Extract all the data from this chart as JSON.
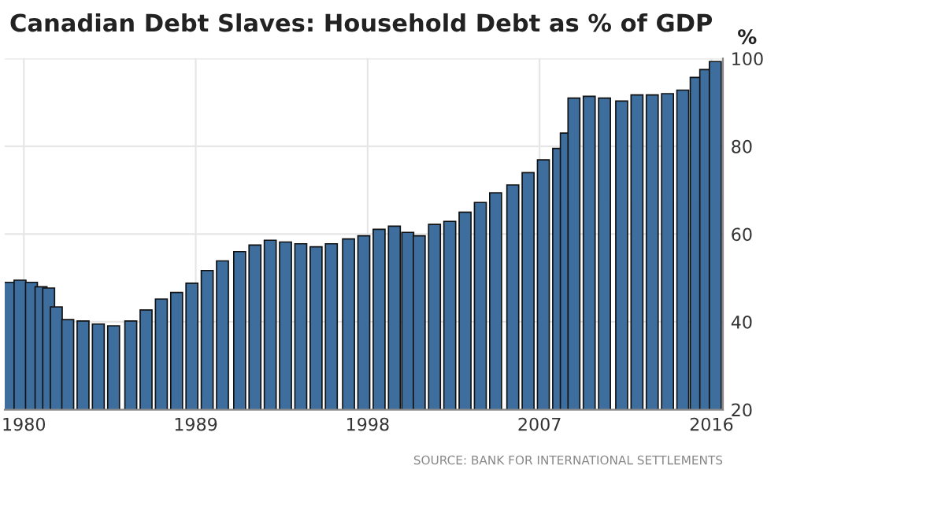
{
  "chart_data": {
    "type": "bar",
    "title": "Canadian Debt Slaves: Household Debt as % of GDP",
    "ylabel": "%",
    "annotations": [
      "SOURCE: BANK FOR INTERNATIONAL SETTLEMENTS"
    ],
    "x": [
      1979.2,
      1979.8,
      1980.4,
      1980.9,
      1981.3,
      1981.7,
      1982.3,
      1983.1,
      1983.9,
      1984.7,
      1985.6,
      1986.4,
      1987.2,
      1988.0,
      1988.8,
      1989.6,
      1990.4,
      1991.3,
      1992.1,
      1992.9,
      1993.7,
      1994.5,
      1995.3,
      1996.1,
      1997.0,
      1997.8,
      1998.6,
      1999.4,
      2000.1,
      2000.7,
      2001.5,
      2002.3,
      2003.1,
      2003.9,
      2004.7,
      2005.6,
      2006.4,
      2007.2,
      2008.0,
      2008.4,
      2008.8,
      2009.6,
      2010.4,
      2011.3,
      2012.1,
      2012.9,
      2013.7,
      2014.5,
      2015.2,
      2015.7,
      2016.2
    ],
    "values": [
      49,
      49.5,
      49,
      48,
      47.7,
      43.4,
      40.5,
      40.2,
      39.5,
      39.1,
      40.2,
      42.7,
      45.2,
      46.7,
      48.8,
      51.7,
      53.9,
      56,
      57.5,
      58.6,
      58.2,
      57.8,
      57.1,
      57.8,
      58.9,
      59.6,
      61.1,
      61.8,
      60.4,
      59.6,
      62.2,
      62.9,
      65,
      67.2,
      69.4,
      71.2,
      74,
      76.9,
      79.5,
      83,
      91,
      91.4,
      91,
      90.3,
      91.7,
      91.7,
      92,
      92.8,
      95.7,
      97.5,
      99.3
    ],
    "color": "#3d6e9e",
    "xlim": [
      1979.0,
      2016.6
    ],
    "xticks": [
      1980,
      1989,
      1998,
      2007,
      2016
    ],
    "ylim": [
      20,
      100
    ],
    "yticks": [
      20,
      40,
      60,
      80,
      100
    ],
    "grid": true,
    "legend": false
  }
}
